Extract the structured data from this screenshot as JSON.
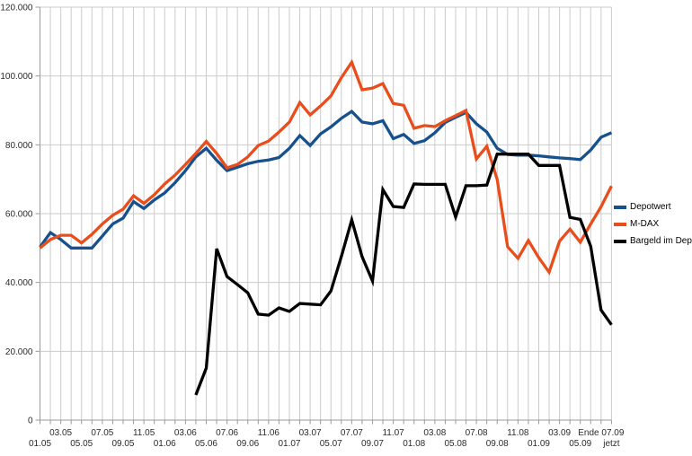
{
  "chart_data": {
    "type": "line",
    "y_axis": {
      "min": 0,
      "max": 120000,
      "step": 20000,
      "labels": [
        "0",
        "20.000",
        "40.000",
        "60.000",
        "80.000",
        "100.000",
        "120.000"
      ]
    },
    "x_axis": {
      "ticks": [
        {
          "i": 0,
          "row": 2,
          "label": "01.05"
        },
        {
          "i": 2,
          "row": 1,
          "label": "03.05"
        },
        {
          "i": 4,
          "row": 2,
          "label": "05.05"
        },
        {
          "i": 6,
          "row": 1,
          "label": "07.05"
        },
        {
          "i": 8,
          "row": 2,
          "label": "09.05"
        },
        {
          "i": 10,
          "row": 1,
          "label": "11.05"
        },
        {
          "i": 12,
          "row": 2,
          "label": "01.06"
        },
        {
          "i": 14,
          "row": 1,
          "label": "03.06"
        },
        {
          "i": 16,
          "row": 2,
          "label": "05.06"
        },
        {
          "i": 18,
          "row": 1,
          "label": "07.06"
        },
        {
          "i": 20,
          "row": 2,
          "label": "09.06"
        },
        {
          "i": 22,
          "row": 1,
          "label": "11.06"
        },
        {
          "i": 24,
          "row": 2,
          "label": "01.07"
        },
        {
          "i": 26,
          "row": 1,
          "label": "03.07"
        },
        {
          "i": 28,
          "row": 2,
          "label": "05.07"
        },
        {
          "i": 30,
          "row": 1,
          "label": "07.07"
        },
        {
          "i": 32,
          "row": 2,
          "label": "09.07"
        },
        {
          "i": 34,
          "row": 1,
          "label": "11.07"
        },
        {
          "i": 36,
          "row": 2,
          "label": "01.08"
        },
        {
          "i": 38,
          "row": 1,
          "label": "03.08"
        },
        {
          "i": 40,
          "row": 2,
          "label": "05.08"
        },
        {
          "i": 42,
          "row": 1,
          "label": "07.08"
        },
        {
          "i": 44,
          "row": 2,
          "label": "09.08"
        },
        {
          "i": 46,
          "row": 1,
          "label": "11.08"
        },
        {
          "i": 48,
          "row": 2,
          "label": "01.09"
        },
        {
          "i": 50,
          "row": 1,
          "label": "03.09"
        },
        {
          "i": 52,
          "row": 2,
          "label": "05.09"
        },
        {
          "i": 54,
          "row": 1,
          "label": "Ende 07.09"
        },
        {
          "i": 55,
          "row": 2,
          "label": "jetzt"
        }
      ],
      "n_points": 56
    },
    "series": [
      {
        "name": "Depotwert",
        "color": "#17518d",
        "values": [
          50300,
          54500,
          52500,
          50000,
          50000,
          50000,
          53500,
          57000,
          58700,
          63500,
          61500,
          64000,
          66000,
          69000,
          72500,
          76500,
          79000,
          75500,
          72500,
          73500,
          74500,
          75200,
          75600,
          76300,
          79000,
          82700,
          79800,
          83200,
          85200,
          87700,
          89700,
          86600,
          86100,
          87000,
          81800,
          83000,
          80400,
          81200,
          83500,
          86500,
          88000,
          89400,
          86100,
          83700,
          79000,
          77200,
          77000,
          77000,
          76800,
          76500,
          76200,
          76000,
          75700,
          78500,
          82200,
          83500
        ]
      },
      {
        "name": "M-DAX",
        "color": "#ea4d1c",
        "values": [
          50000,
          52500,
          53700,
          53700,
          51500,
          54000,
          57000,
          59500,
          61300,
          65200,
          63000,
          65500,
          68600,
          71200,
          74300,
          77500,
          81000,
          77500,
          73300,
          74300,
          76500,
          79800,
          81100,
          83700,
          86600,
          92300,
          88700,
          91300,
          94200,
          99500,
          104000,
          96000,
          96500,
          97800,
          92000,
          91500,
          84800,
          85600,
          85300,
          87000,
          88500,
          90000,
          75900,
          79600,
          70000,
          50400,
          47000,
          52200,
          47200,
          43000,
          52000,
          55500,
          51700,
          57000,
          62000,
          68000
        ]
      },
      {
        "name": "Bargeld im Depot",
        "color": "#000000",
        "values": [
          null,
          null,
          null,
          null,
          null,
          null,
          null,
          null,
          null,
          null,
          null,
          null,
          null,
          null,
          null,
          7300,
          15100,
          49800,
          41700,
          39400,
          37000,
          30800,
          30500,
          32600,
          31600,
          33900,
          33700,
          33500,
          37500,
          47500,
          58200,
          47500,
          40400,
          67000,
          62100,
          61800,
          68600,
          68500,
          68500,
          68500,
          59000,
          68100,
          68100,
          68300,
          77300,
          77300,
          77300,
          77300,
          74000,
          74000,
          74000,
          58900,
          58300,
          50500,
          32000,
          27700
        ]
      }
    ],
    "legend_position": "right",
    "grid": true
  }
}
